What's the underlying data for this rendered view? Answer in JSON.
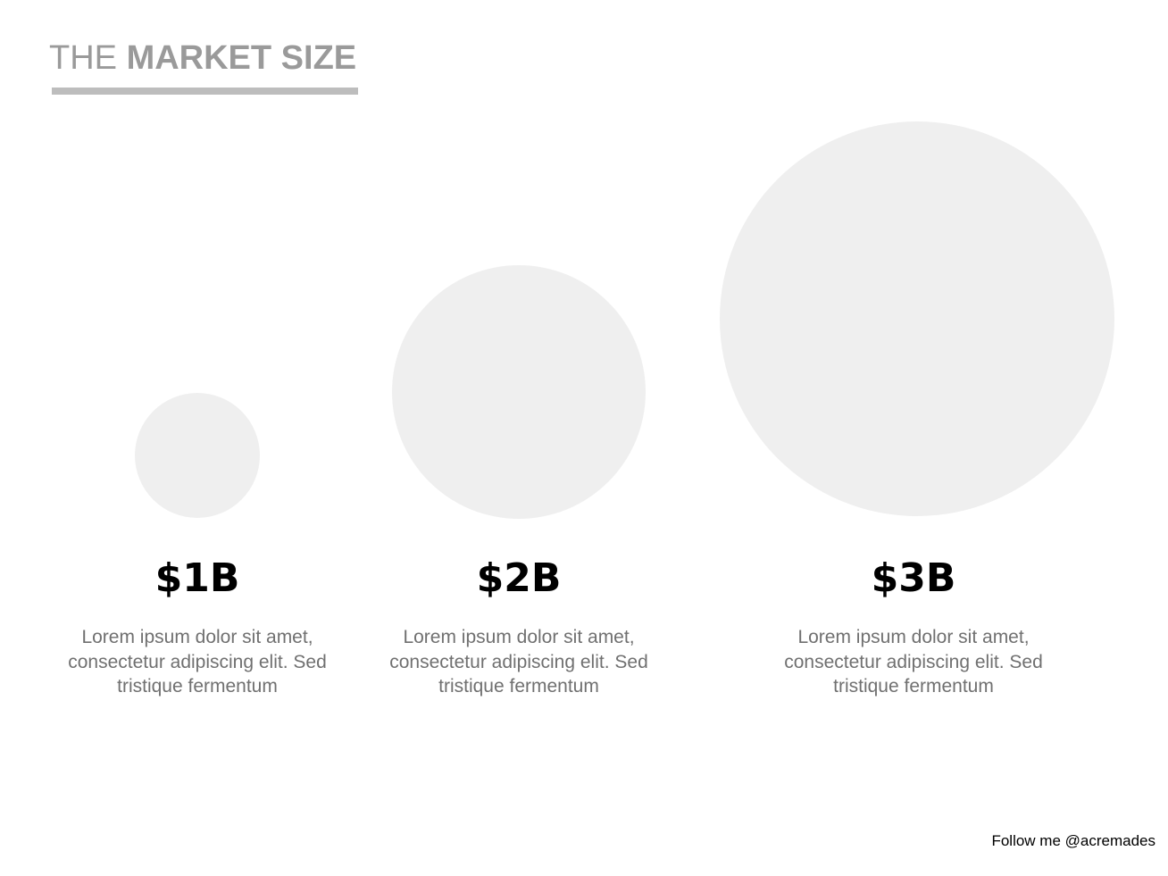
{
  "header": {
    "title_light": "THE",
    "title_bold": "MARKET SIZE"
  },
  "items": [
    {
      "value": "$1B",
      "text": "Lorem ipsum dolor sit amet, consectetur adipiscing elit. Sed tristique fermentum"
    },
    {
      "value": "$2B",
      "text": "Lorem ipsum dolor sit amet, consectetur adipiscing elit. Sed tristique fermentum"
    },
    {
      "value": "$3B",
      "text": "Lorem ipsum dolor sit amet, consectetur adipiscing elit. Sed tristique fermentum"
    }
  ],
  "footer": "Follow me @acremades"
}
